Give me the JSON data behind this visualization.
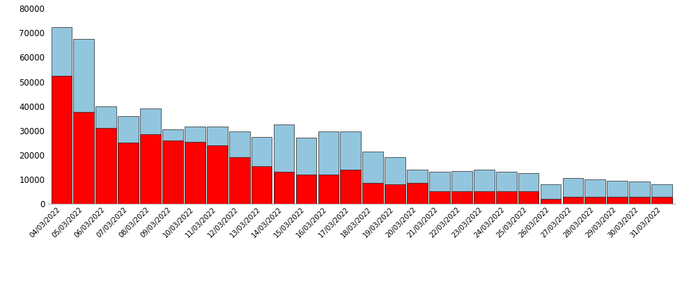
{
  "dates": [
    "04/03/2022",
    "05/03/2022",
    "06/03/2022",
    "07/03/2022",
    "08/03/2022",
    "09/03/2022",
    "10/03/2022",
    "11/03/2022",
    "12/03/2022",
    "13/03/2022",
    "14/03/2022",
    "15/03/2022",
    "16/03/2022",
    "17/03/2022",
    "18/03/2022",
    "19/03/2022",
    "20/03/2022",
    "21/03/2022",
    "22/03/2022",
    "23/03/2022",
    "24/03/2022",
    "25/03/2022",
    "26/03/2022",
    "27/03/2022",
    "28/03/2022",
    "29/03/2022",
    "30/03/2022",
    "31/03/2022"
  ],
  "red_values": [
    52500,
    37500,
    31000,
    25000,
    28500,
    26000,
    25500,
    24000,
    19000,
    15500,
    13000,
    12000,
    12000,
    14000,
    8500,
    8000,
    8500,
    5000,
    5000,
    5000,
    5000,
    5000,
    2000,
    3000,
    3000,
    3000,
    3000,
    3000
  ],
  "total_values": [
    72500,
    67500,
    40000,
    36000,
    39000,
    30500,
    31500,
    31500,
    29500,
    27500,
    32500,
    27000,
    29500,
    29500,
    21500,
    19000,
    14000,
    13000,
    13500,
    14000,
    13000,
    12500,
    8000,
    10500,
    10000,
    9500,
    9000,
    8000
  ],
  "bar_color_red": "#FF0000",
  "bar_color_blue": "#92C5DE",
  "bar_edgecolor": "#222222",
  "background_color": "#FFFFFF",
  "ylim": [
    0,
    80000
  ],
  "yticks": [
    0,
    10000,
    20000,
    30000,
    40000,
    50000,
    60000,
    70000,
    80000
  ]
}
